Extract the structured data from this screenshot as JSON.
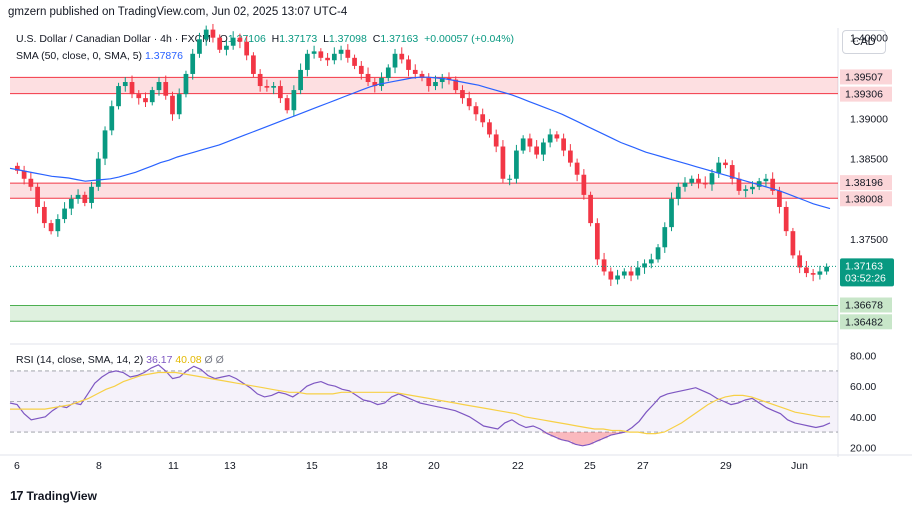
{
  "header": {
    "published": "gmzern published on TradingView.com, Jun 02, 2025 13:07 UTC-4"
  },
  "legend": {
    "symbol": "U.S. Dollar / Canadian Dollar · 4h · FXCM",
    "ohlc": {
      "o_label": "O",
      "o": "1.37106",
      "h_label": "H",
      "h": "1.37173",
      "l_label": "L",
      "l": "1.37098",
      "c_label": "C",
      "c": "1.37163",
      "chg": "+0.00057 (+0.04%)"
    },
    "sma_label": "SMA (50, close, 0, SMA, 5)",
    "sma_value": "1.37876",
    "rsi_label": "RSI (14, close, SMA, 14, 2)",
    "rsi_value": "36.17",
    "rsi_ma_value": "40.08",
    "rsi_extra1": "Ø",
    "rsi_extra2": "Ø"
  },
  "currency_button": "CAD",
  "footer": {
    "brand": "TradingView",
    "logo": "17"
  },
  "colors": {
    "up": "#089981",
    "down": "#f23645",
    "sma": "#2962ff",
    "rsi": "#7e57c2",
    "rsi_ma": "#f7d046",
    "resistance": "#f23645",
    "support": "#4caf50"
  },
  "chart_data": [
    {
      "type": "candlestick",
      "title": "U.S. Dollar / Canadian Dollar · 4h · FXCM",
      "ylim": [
        1.3625,
        1.4012
      ],
      "y_ticks": [
        "1.40000",
        "1.39000",
        "1.38500",
        "1.37500"
      ],
      "x_ticks": [
        "6",
        "8",
        "11",
        "13",
        "15",
        "18",
        "20",
        "22",
        "25",
        "27",
        "29",
        "Jun"
      ],
      "current_price": "1.37163",
      "countdown": "03:52:26",
      "zones": [
        {
          "kind": "resistance",
          "top": 1.39507,
          "bottom": 1.39306,
          "top_label": "1.39507",
          "bottom_label": "1.39306"
        },
        {
          "kind": "resistance",
          "top": 1.38196,
          "bottom": 1.38008,
          "top_label": "1.38196",
          "bottom_label": "1.38008"
        },
        {
          "kind": "support",
          "top": 1.36678,
          "bottom": 1.36482,
          "top_label": "1.36678",
          "bottom_label": "1.36482"
        }
      ],
      "close": [
        1.3835,
        1.3825,
        1.3815,
        1.379,
        1.377,
        1.376,
        1.3775,
        1.3788,
        1.38,
        1.3805,
        1.3795,
        1.3815,
        1.385,
        1.3885,
        1.3915,
        1.394,
        1.3945,
        1.393,
        1.3925,
        1.392,
        1.3935,
        1.3945,
        1.3928,
        1.3905,
        1.393,
        1.3955,
        1.398,
        1.3998,
        1.401,
        1.4,
        1.3985,
        1.399,
        1.4,
        1.3995,
        1.3978,
        1.3955,
        1.394,
        1.3938,
        1.394,
        1.3925,
        1.391,
        1.3935,
        1.396,
        1.398,
        1.3983,
        1.3975,
        1.3972,
        1.398,
        1.3985,
        1.3975,
        1.3965,
        1.3955,
        1.3945,
        1.394,
        1.395,
        1.3963,
        1.398,
        1.3973,
        1.396,
        1.3955,
        1.395,
        1.394,
        1.3945,
        1.395,
        1.3948,
        1.3935,
        1.3925,
        1.3915,
        1.3905,
        1.3895,
        1.388,
        1.3865,
        1.3825,
        1.3825,
        1.386,
        1.3875,
        1.3865,
        1.3855,
        1.387,
        1.388,
        1.3875,
        1.386,
        1.3845,
        1.383,
        1.3805,
        1.377,
        1.3725,
        1.371,
        1.37,
        1.3705,
        1.371,
        1.3705,
        1.3715,
        1.372,
        1.3725,
        1.374,
        1.3765,
        1.38,
        1.3815,
        1.382,
        1.3825,
        1.382,
        1.3818,
        1.3832,
        1.3845,
        1.3842,
        1.3825,
        1.381,
        1.3812,
        1.3815,
        1.3822,
        1.3825,
        1.381,
        1.379,
        1.376,
        1.373,
        1.3715,
        1.3708,
        1.3706,
        1.371,
        1.3716
      ],
      "sma": [
        1.3838,
        1.3836,
        1.3834,
        1.3832,
        1.383,
        1.3828,
        1.3827,
        1.3826,
        1.3824,
        1.3822,
        1.3823,
        1.3824,
        1.3825,
        1.3827,
        1.383,
        1.3833,
        1.3837,
        1.3841,
        1.3845,
        1.3848,
        1.3852,
        1.3855,
        1.3858,
        1.3861,
        1.3864,
        1.3867,
        1.3871,
        1.3875,
        1.3879,
        1.3883,
        1.3887,
        1.3891,
        1.3895,
        1.3899,
        1.3903,
        1.3907,
        1.3911,
        1.3915,
        1.3919,
        1.3923,
        1.3927,
        1.3931,
        1.3935,
        1.3939,
        1.3942,
        1.3944,
        1.3946,
        1.3948,
        1.395,
        1.3951,
        1.3951,
        1.395,
        1.3949,
        1.3947,
        1.3945,
        1.3943,
        1.3941,
        1.3938,
        1.3935,
        1.3932,
        1.3929,
        1.3925,
        1.3921,
        1.3917,
        1.3913,
        1.3909,
        1.3905,
        1.39,
        1.3895,
        1.389,
        1.3885,
        1.388,
        1.3875,
        1.387,
        1.3866,
        1.3862,
        1.3858,
        1.3855,
        1.3852,
        1.3849,
        1.3846,
        1.3843,
        1.384,
        1.3837,
        1.3834,
        1.3831,
        1.3828,
        1.3825,
        1.3822,
        1.3819,
        1.3816,
        1.3813,
        1.381,
        1.3806,
        1.3802,
        1.3798,
        1.3794,
        1.3791,
        1.3788
      ]
    },
    {
      "type": "line",
      "title": "RSI (14, close, SMA, 14, 2)",
      "ylim": [
        15,
        85
      ],
      "y_ticks": [
        "80.00",
        "60.00",
        "40.00",
        "20.00"
      ],
      "bands": [
        70,
        50,
        30
      ],
      "rsi": [
        49,
        48,
        42,
        38,
        39,
        40,
        44,
        47,
        46,
        49,
        48,
        55,
        62,
        66,
        69,
        70,
        69,
        66,
        67,
        69,
        72,
        74,
        70,
        65,
        66,
        70,
        73,
        71,
        67,
        65,
        66,
        67,
        65,
        62,
        59,
        55,
        53,
        54,
        56,
        55,
        53,
        56,
        60,
        62,
        63,
        61,
        60,
        58,
        57,
        54,
        51,
        50,
        48,
        49,
        53,
        55,
        53,
        51,
        49,
        48,
        47,
        46,
        45,
        44,
        42,
        40,
        37,
        34,
        33,
        32,
        36,
        38,
        35,
        33,
        34,
        32,
        29,
        27,
        25,
        24,
        22,
        21,
        22,
        24,
        26,
        28,
        29,
        30,
        33,
        37,
        43,
        48,
        53,
        55,
        56,
        57,
        58,
        59,
        57,
        55,
        52,
        50,
        48,
        49,
        51,
        52,
        49,
        46,
        44,
        42,
        38,
        36,
        35,
        34,
        33,
        34,
        36
      ],
      "rsi_ma": [
        45,
        45,
        45,
        45,
        45,
        46,
        47,
        48,
        50,
        52,
        55,
        58,
        60,
        63,
        65,
        67,
        68,
        69,
        69,
        69,
        68,
        67,
        66,
        65,
        64,
        63,
        62,
        61,
        60,
        59,
        58,
        57,
        56,
        56,
        55,
        55,
        55,
        55,
        56,
        56,
        56,
        56,
        56,
        56,
        56,
        55,
        54,
        53,
        52,
        51,
        50,
        49,
        48,
        47,
        46,
        45,
        44,
        43,
        42,
        40,
        39,
        38,
        37,
        36,
        35,
        34,
        33,
        32,
        32,
        31,
        31,
        30,
        30,
        29,
        29,
        30,
        33,
        36,
        40,
        44,
        48,
        51,
        53,
        54,
        54,
        53,
        51,
        49,
        47,
        45,
        43,
        42,
        41,
        40,
        40
      ]
    }
  ]
}
